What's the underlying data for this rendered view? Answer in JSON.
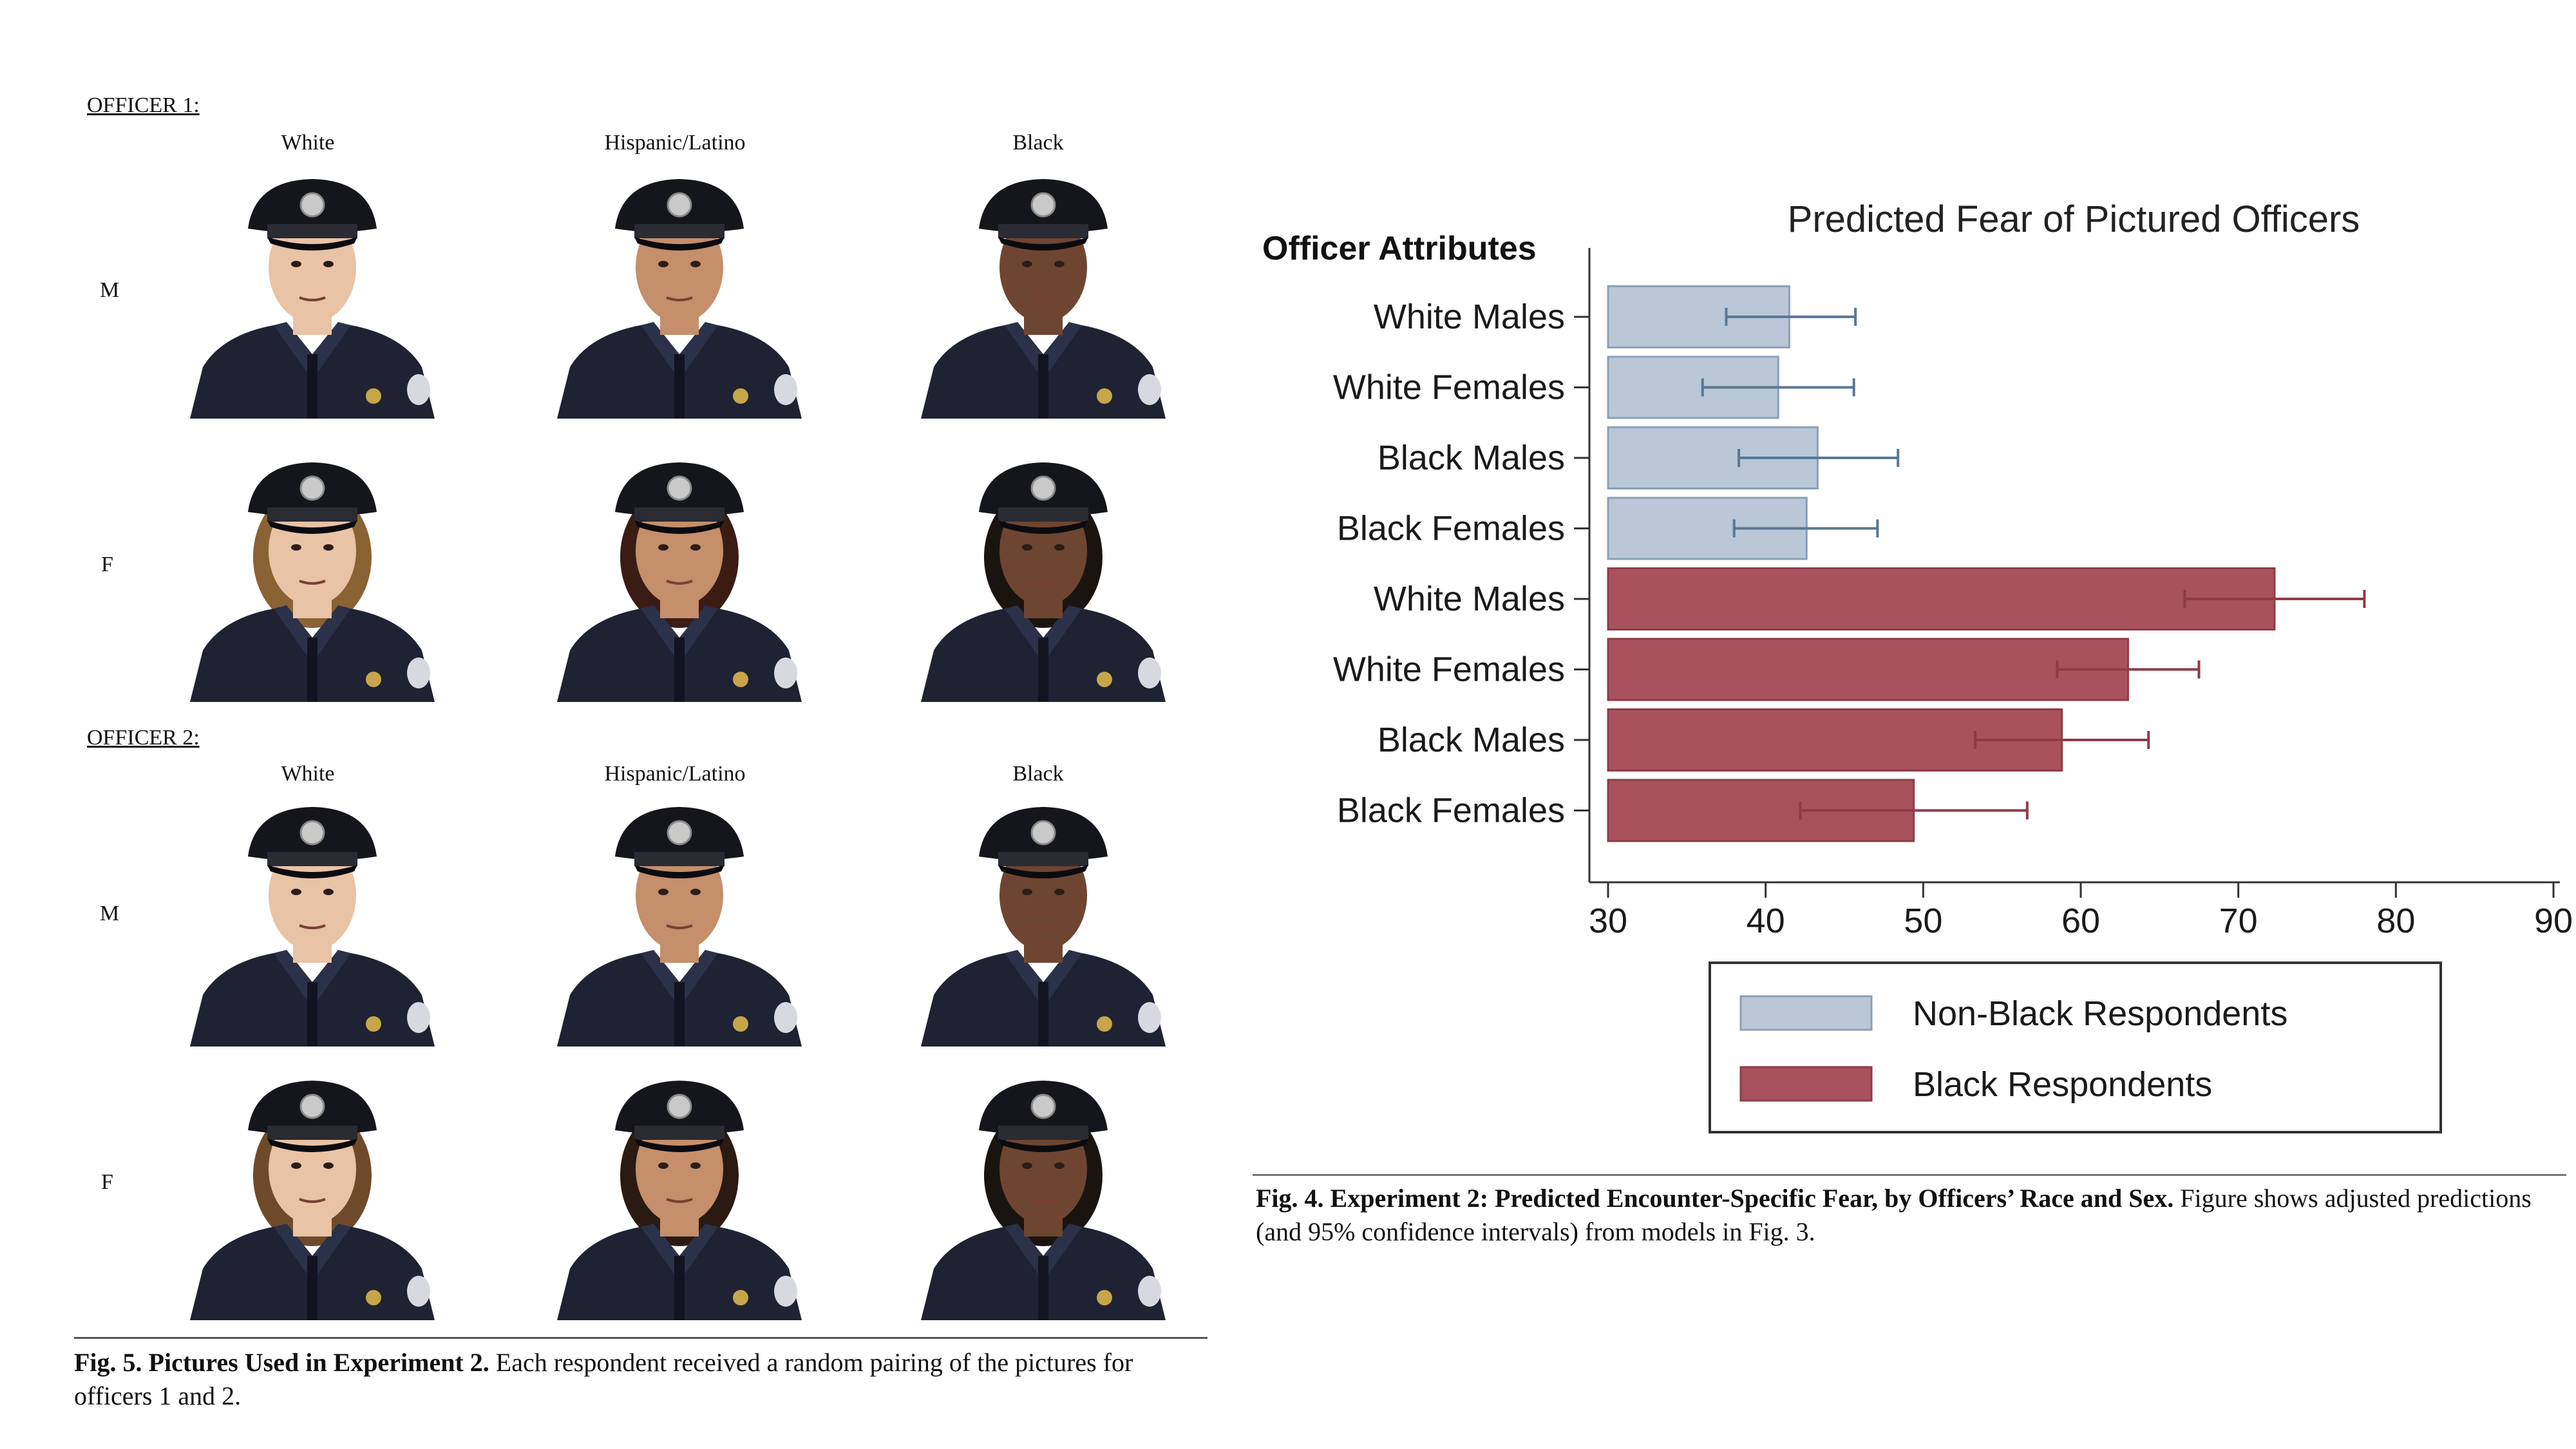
{
  "left_figure": {
    "officer1_label": "OFFICER 1:",
    "officer2_label": "OFFICER 2:",
    "columns": [
      "White",
      "Hispanic/Latino",
      "Black"
    ],
    "rows": [
      "M",
      "F"
    ],
    "caption_bold": "Fig. 5. Pictures Used in Experiment 2.",
    "caption_text": " Each respondent received a random pairing of the pictures for officers 1 and 2."
  },
  "right_figure": {
    "caption_bold": "Fig. 4. Experiment 2: Predicted Encounter-Specific Fear, by Officers’ Race and Sex.",
    "caption_text": " Figure shows adjusted predictions (and 95% confidence intervals) from models in Fig. 3."
  },
  "colors": {
    "nonblack": "#b9c7d7",
    "nonblack_edge": "#8aa0b6",
    "nonblack_err": "#5a7896",
    "black": "#a8525e",
    "black_edge": "#8f3b47",
    "black_err": "#8f3b47",
    "skin_light": "#e9c3a6",
    "skin_medium": "#c48f6a",
    "skin_dark": "#6e4530",
    "uniform": "#1e2233",
    "cap": "#15161c"
  },
  "photos": [
    {
      "officer": 1,
      "row": "M",
      "col": "White",
      "skin": "skin_light",
      "hair": "none"
    },
    {
      "officer": 1,
      "row": "M",
      "col": "Hispanic/Latino",
      "skin": "skin_medium",
      "hair": "none"
    },
    {
      "officer": 1,
      "row": "M",
      "col": "Black",
      "skin": "skin_dark",
      "hair": "none"
    },
    {
      "officer": 1,
      "row": "F",
      "col": "White",
      "skin": "skin_light",
      "hair": "#8a6233"
    },
    {
      "officer": 1,
      "row": "F",
      "col": "Hispanic/Latino",
      "skin": "skin_medium",
      "hair": "#3a1c14"
    },
    {
      "officer": 1,
      "row": "F",
      "col": "Black",
      "skin": "skin_dark",
      "hair": "#1a1410"
    },
    {
      "officer": 2,
      "row": "M",
      "col": "White",
      "skin": "skin_light",
      "hair": "none"
    },
    {
      "officer": 2,
      "row": "M",
      "col": "Hispanic/Latino",
      "skin": "skin_medium",
      "hair": "none"
    },
    {
      "officer": 2,
      "row": "M",
      "col": "Black",
      "skin": "skin_dark",
      "hair": "none"
    },
    {
      "officer": 2,
      "row": "F",
      "col": "White",
      "skin": "skin_light",
      "hair": "#6e4a2a"
    },
    {
      "officer": 2,
      "row": "F",
      "col": "Hispanic/Latino",
      "skin": "skin_medium",
      "hair": "#2a1a12"
    },
    {
      "officer": 2,
      "row": "F",
      "col": "Black",
      "skin": "skin_dark",
      "hair": "#1a1410"
    }
  ],
  "chart_data": {
    "type": "bar",
    "orientation": "horizontal",
    "title": "Predicted Fear of Pictured Officers",
    "ylabel": "Officer Attributes",
    "xlabel": "",
    "xlim": [
      30,
      90
    ],
    "xticks": [
      30,
      40,
      50,
      60,
      70,
      80,
      90
    ],
    "legend_position": "bottom",
    "series": [
      {
        "name": "Non-Black Respondents",
        "color_key": "nonblack",
        "categories": [
          "White Males",
          "White Females",
          "Black Males",
          "Black Females"
        ],
        "values": [
          41.5,
          40.8,
          43.3,
          42.6
        ],
        "ci_low": [
          37.5,
          36.0,
          38.3,
          38.0
        ],
        "ci_high": [
          45.7,
          45.6,
          48.4,
          47.1
        ]
      },
      {
        "name": "Black Respondents",
        "color_key": "black",
        "categories": [
          "White Males",
          "White Females",
          "Black Males",
          "Black Females"
        ],
        "values": [
          72.3,
          63.0,
          58.8,
          49.4
        ],
        "ci_low": [
          66.6,
          58.5,
          53.3,
          42.2
        ],
        "ci_high": [
          78.0,
          67.5,
          64.3,
          56.6
        ]
      }
    ]
  }
}
